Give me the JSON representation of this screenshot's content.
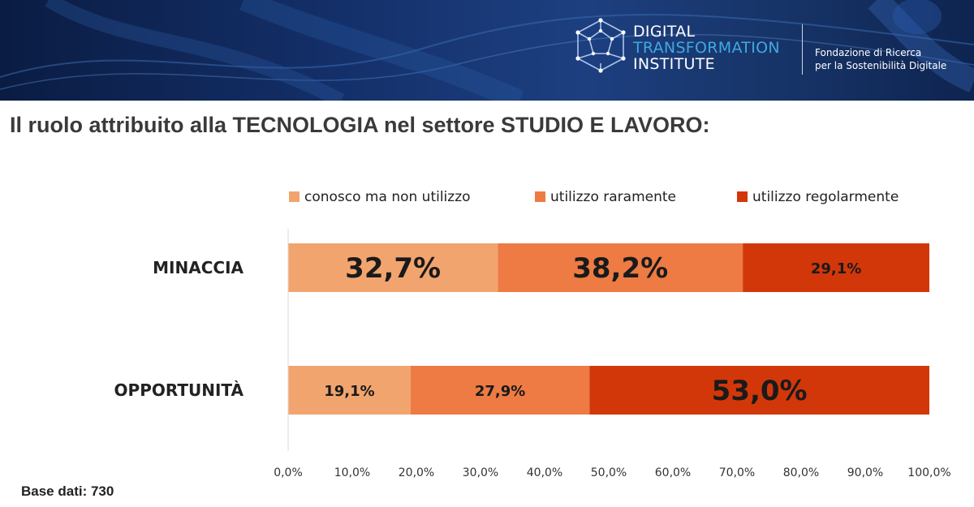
{
  "header": {
    "logo_line1": "DIGITAL",
    "logo_line2": "TRANSFORMATION",
    "logo_line3": "INSTITUTE",
    "tagline_line1": "Fondazione di Ricerca",
    "tagline_line2": "per la Sostenibilità Digitale",
    "logo_icon": "dodecahedron-network-icon"
  },
  "title": "Il ruolo attribuito alla TECNOLOGIA nel settore STUDIO E LAVORO:",
  "footer": {
    "base_note": "Base dati: 730"
  },
  "chart_data": {
    "type": "bar",
    "orientation": "horizontal",
    "stacked": true,
    "categories": [
      "MINACCIA",
      "OPPORTUNITÀ"
    ],
    "series": [
      {
        "name": "conosco ma non utilizzo",
        "values": [
          32.7,
          19.1
        ],
        "labels": [
          "32,7%",
          "19,1%"
        ],
        "color": "#f2a46f"
      },
      {
        "name": "utilizzo raramente",
        "values": [
          38.2,
          27.9
        ],
        "labels": [
          "38,2%",
          "27,9%"
        ],
        "color": "#ed7b43"
      },
      {
        "name": "utilizzo regolarmente",
        "values": [
          29.1,
          53.0
        ],
        "labels": [
          "29,1%",
          "53,0%"
        ],
        "color": "#d2370a"
      }
    ],
    "large_labels": [
      [
        true,
        false
      ],
      [
        true,
        false
      ],
      [
        false,
        true
      ]
    ],
    "xlim": [
      0,
      100
    ],
    "xticks": [
      0,
      10,
      20,
      30,
      40,
      50,
      60,
      70,
      80,
      90,
      100
    ],
    "xtick_labels": [
      "0,0%",
      "10,0%",
      "20,0%",
      "30,0%",
      "40,0%",
      "50,0%",
      "60,0%",
      "70,0%",
      "80,0%",
      "90,0%",
      "100,0%"
    ],
    "legend_position": "top",
    "grid": false
  }
}
